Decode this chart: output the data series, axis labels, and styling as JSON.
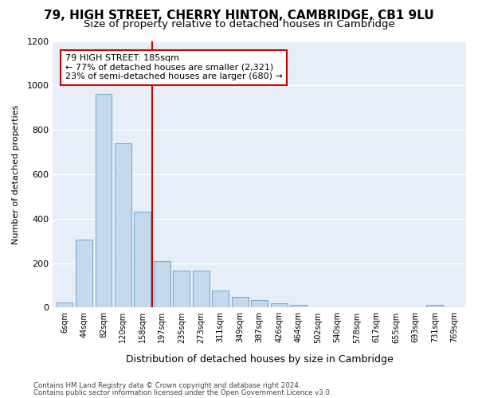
{
  "title_line1": "79, HIGH STREET, CHERRY HINTON, CAMBRIDGE, CB1 9LU",
  "title_line2": "Size of property relative to detached houses in Cambridge",
  "xlabel": "Distribution of detached houses by size in Cambridge",
  "ylabel": "Number of detached properties",
  "bin_labels": [
    "6sqm",
    "44sqm",
    "82sqm",
    "120sqm",
    "158sqm",
    "197sqm",
    "235sqm",
    "273sqm",
    "311sqm",
    "349sqm",
    "387sqm",
    "426sqm",
    "464sqm",
    "502sqm",
    "540sqm",
    "578sqm",
    "617sqm",
    "655sqm",
    "693sqm",
    "731sqm",
    "769sqm"
  ],
  "bar_heights": [
    22,
    305,
    960,
    740,
    430,
    210,
    165,
    165,
    75,
    48,
    33,
    18,
    13,
    0,
    0,
    0,
    0,
    0,
    0,
    13,
    0
  ],
  "bar_color": "#c5d8ee",
  "bar_edge_color": "#7aadd4",
  "vline_color": "#cc0000",
  "vline_x_index": 5,
  "annotation_text_line1": "79 HIGH STREET: 185sqm",
  "annotation_text_line2": "← 77% of detached houses are smaller (2,321)",
  "annotation_text_line3": "23% of semi-detached houses are larger (680) →",
  "annotation_box_facecolor": "#ffffff",
  "annotation_box_edgecolor": "#cc0000",
  "ylim": [
    0,
    1200
  ],
  "yticks": [
    0,
    200,
    400,
    600,
    800,
    1000,
    1200
  ],
  "footer_line1": "Contains HM Land Registry data © Crown copyright and database right 2024.",
  "footer_line2": "Contains public sector information licensed under the Open Government Licence v3.0.",
  "background_color": "#ffffff",
  "plot_bg_color": "#e8eef7",
  "grid_color": "#ffffff",
  "title_fontsize": 11,
  "subtitle_fontsize": 9.5
}
